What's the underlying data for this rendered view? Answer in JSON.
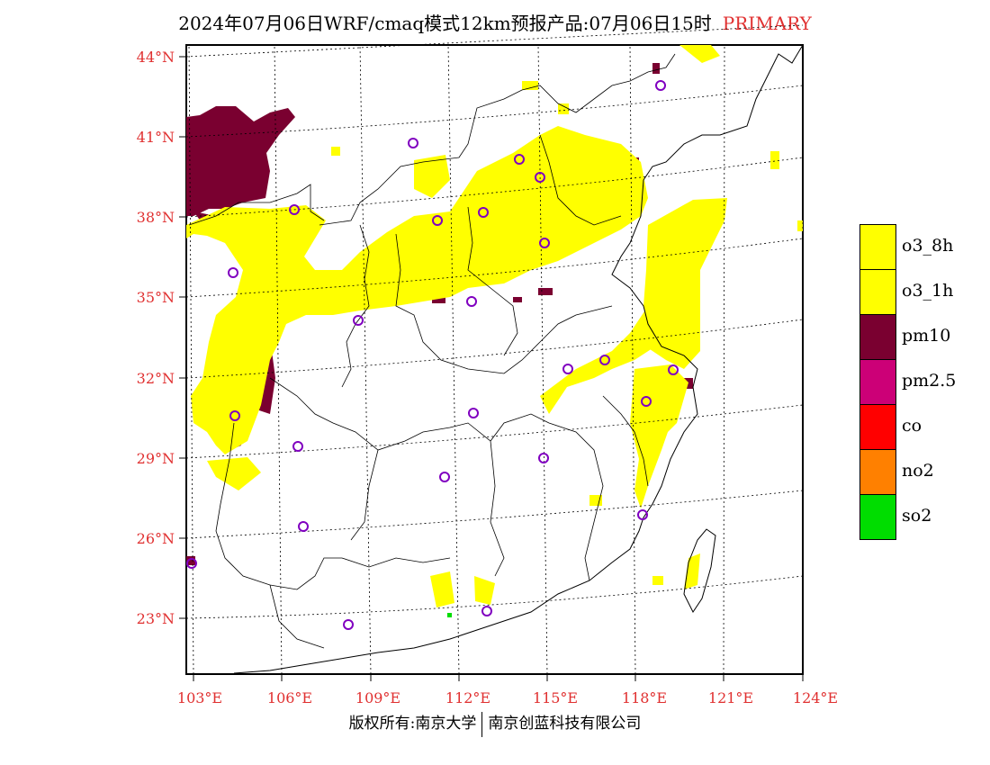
{
  "title": {
    "main": "2024年07月06日WRF/cmaq模式12km预报产品:07月06日15时",
    "tag": "PRIMARY"
  },
  "axes": {
    "lat_labels": [
      "44°N",
      "41°N",
      "38°N",
      "35°N",
      "32°N",
      "29°N",
      "26°N",
      "23°N"
    ],
    "lon_labels": [
      "103°E",
      "106°E",
      "109°E",
      "112°E",
      "115°E",
      "118°E",
      "121°E",
      "124°E"
    ]
  },
  "legend": [
    {
      "label": "o3_8h",
      "color": "#ffff00"
    },
    {
      "label": "o3_1h",
      "color": "#ffff00"
    },
    {
      "label": "pm10",
      "color": "#7a0030"
    },
    {
      "label": "pm2.5",
      "color": "#cc0077"
    },
    {
      "label": "co",
      "color": "#ff0000"
    },
    {
      "label": "no2",
      "color": "#ff8000"
    },
    {
      "label": "so2",
      "color": "#00dd00"
    }
  ],
  "colors": {
    "grid": "#000000",
    "station_marker": "#8000c0",
    "label_red": "#e03030"
  },
  "footer": {
    "left": "版权所有:南京大学",
    "right": "南京创蓝科技有限公司"
  }
}
